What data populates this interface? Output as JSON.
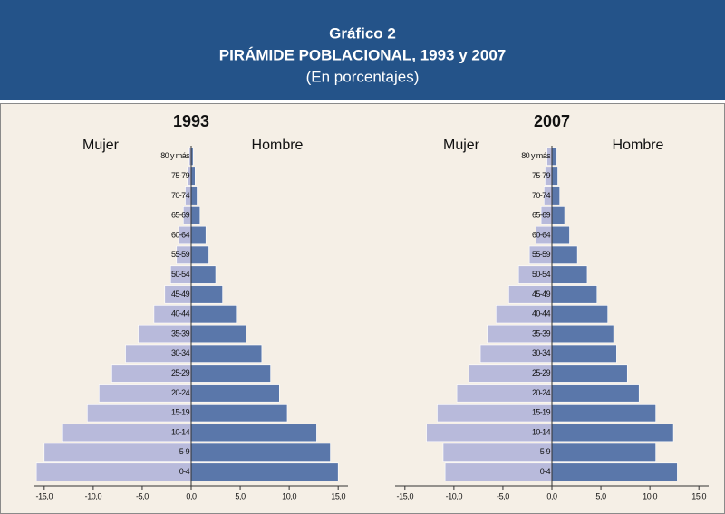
{
  "header": {
    "line1": "Gráfico 2",
    "line2": "PIRÁMIDE POBLACIONAL, 1993 y 2007",
    "line3": "(En porcentajes)"
  },
  "chart_data": [
    {
      "type": "bar",
      "orientation": "horizontal",
      "title": "1993",
      "categories": [
        "0-4",
        "5-9",
        "10-14",
        "15-19",
        "20-24",
        "25-29",
        "30-34",
        "35-39",
        "40-44",
        "45-49",
        "50-54",
        "55-59",
        "60-64",
        "65-69",
        "70-74",
        "75-79",
        "80 y más"
      ],
      "series": [
        {
          "name": "Mujer",
          "color": "#b8badb",
          "values": [
            -15.8,
            -15.0,
            -13.2,
            -10.6,
            -9.4,
            -8.1,
            -6.7,
            -5.4,
            -3.8,
            -2.7,
            -2.1,
            -1.5,
            -1.3,
            -0.8,
            -0.6,
            -0.4,
            -0.2
          ]
        },
        {
          "name": "Hombre",
          "color": "#5a77aa",
          "values": [
            15.0,
            14.2,
            12.8,
            9.8,
            9.0,
            8.1,
            7.2,
            5.6,
            4.6,
            3.2,
            2.5,
            1.8,
            1.5,
            0.9,
            0.6,
            0.4,
            0.2
          ]
        }
      ],
      "xlim": [
        -16,
        16
      ],
      "xticks": [
        {
          "value": -15,
          "label": "-15,0"
        },
        {
          "value": -10,
          "label": "-10,0"
        },
        {
          "value": -5,
          "label": "-5,0"
        },
        {
          "value": 0,
          "label": "0,0"
        },
        {
          "value": 5,
          "label": "5,0"
        },
        {
          "value": 10,
          "label": "10,0"
        },
        {
          "value": 15,
          "label": "15,0"
        }
      ]
    },
    {
      "type": "bar",
      "orientation": "horizontal",
      "title": "2007",
      "categories": [
        "0-4",
        "5-9",
        "10-14",
        "15-19",
        "20-24",
        "25-29",
        "30-34",
        "35-39",
        "40-44",
        "45-49",
        "50-54",
        "55-59",
        "60-64",
        "65-69",
        "70-74",
        "75-79",
        "80 y más"
      ],
      "series": [
        {
          "name": "Mujer",
          "color": "#b8badb",
          "values": [
            -10.9,
            -11.1,
            -12.8,
            -11.7,
            -9.7,
            -8.5,
            -7.3,
            -6.6,
            -5.7,
            -4.4,
            -3.4,
            -2.3,
            -1.6,
            -1.1,
            -0.8,
            -0.7,
            -0.5
          ]
        },
        {
          "name": "Hombre",
          "color": "#5a77aa",
          "values": [
            12.8,
            10.6,
            12.4,
            10.6,
            8.9,
            7.7,
            6.6,
            6.3,
            5.7,
            4.6,
            3.6,
            2.6,
            1.8,
            1.3,
            0.8,
            0.6,
            0.5
          ]
        }
      ],
      "xlim": [
        -16,
        16
      ],
      "xticks": [
        {
          "value": -15,
          "label": "-15,0"
        },
        {
          "value": -10,
          "label": "-10,0"
        },
        {
          "value": -5,
          "label": "-5,0"
        },
        {
          "value": 0,
          "label": "0,0"
        },
        {
          "value": 5,
          "label": "5,0"
        },
        {
          "value": 10,
          "label": "10,0"
        },
        {
          "value": 15,
          "label": "15,0"
        }
      ]
    }
  ]
}
